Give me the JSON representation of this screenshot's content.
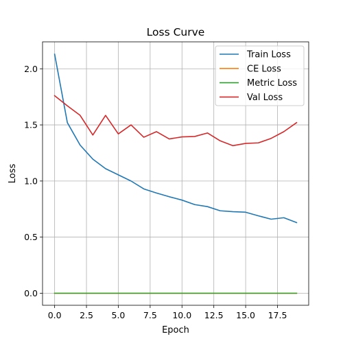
{
  "chart_data": {
    "type": "line",
    "title": "Loss Curve",
    "xlabel": "Epoch",
    "ylabel": "Loss",
    "xlim": [
      -0.95,
      19.95
    ],
    "ylim": [
      -0.107,
      2.24
    ],
    "xticks": [
      0,
      2.5,
      5,
      7.5,
      10,
      12.5,
      15,
      17.5
    ],
    "xtick_labels": [
      "0.0",
      "2.5",
      "5.0",
      "7.5",
      "10.0",
      "12.5",
      "15.0",
      "17.5"
    ],
    "yticks": [
      0,
      0.5,
      1.0,
      1.5,
      2.0
    ],
    "ytick_labels": [
      "0.0",
      "0.5",
      "1.0",
      "1.5",
      "2.0"
    ],
    "grid": true,
    "legend_position": "top-right",
    "x": [
      0,
      1,
      2,
      3,
      4,
      5,
      6,
      7,
      8,
      9,
      10,
      11,
      12,
      13,
      14,
      15,
      16,
      17,
      18,
      19
    ],
    "series": [
      {
        "name": "Train Loss",
        "color": "#1f77b4",
        "values": [
          2.13,
          1.52,
          1.32,
          1.195,
          1.11,
          1.055,
          1.0,
          0.93,
          0.893,
          0.86,
          0.83,
          0.79,
          0.772,
          0.735,
          0.727,
          0.722,
          0.69,
          0.66,
          0.673,
          0.63
        ]
      },
      {
        "name": "CE Loss",
        "color": "#ff7f0e",
        "values": [
          0,
          0,
          0,
          0,
          0,
          0,
          0,
          0,
          0,
          0,
          0,
          0,
          0,
          0,
          0,
          0,
          0,
          0,
          0,
          0
        ]
      },
      {
        "name": "Metric Loss",
        "color": "#2ca02c",
        "values": [
          0,
          0,
          0,
          0,
          0,
          0,
          0,
          0,
          0,
          0,
          0,
          0,
          0,
          0,
          0,
          0,
          0,
          0,
          0,
          0
        ]
      },
      {
        "name": "Val Loss",
        "color": "#d62728",
        "values": [
          1.76,
          1.67,
          1.585,
          1.41,
          1.585,
          1.42,
          1.5,
          1.39,
          1.44,
          1.375,
          1.393,
          1.397,
          1.428,
          1.358,
          1.315,
          1.335,
          1.34,
          1.38,
          1.44,
          1.52
        ]
      }
    ]
  }
}
